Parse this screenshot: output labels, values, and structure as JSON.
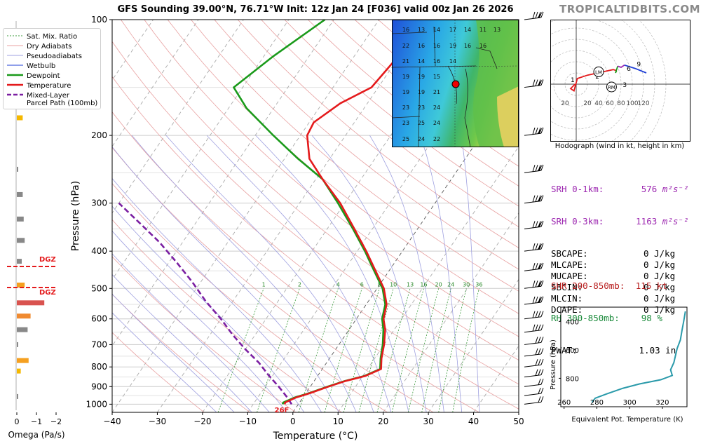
{
  "header": {
    "title": "GFS Sounding 39.00°N, 76.71°W Init: 12z Jan 24 [F036] valid 00z Jan 26 2026",
    "brand": "TROPICALTIDBITS.COM"
  },
  "skewt": {
    "xlabel": "Temperature (°C)",
    "ylabel": "Pressure (hPa)",
    "x_ticks": [
      -40,
      -30,
      -20,
      -10,
      0,
      10,
      20,
      30,
      40,
      50
    ],
    "x_tick_labels": [
      "−40",
      "−30",
      "−20",
      "−10",
      "0",
      "10",
      "20",
      "30",
      "40",
      "50"
    ],
    "y_ticks": [
      100,
      200,
      300,
      400,
      500,
      600,
      700,
      800,
      900,
      1000
    ],
    "y_tick_labels": [
      "100",
      "200",
      "300",
      "400",
      "500",
      "600",
      "700",
      "800",
      "900",
      "1000"
    ],
    "mixing_ratio_labels": [
      "1",
      "2",
      "4",
      "6",
      "8",
      "10",
      "13",
      "16",
      "20",
      "24",
      "30",
      "36"
    ],
    "surface_temp_label": "26F",
    "legend": [
      "Sat. Mix. Ratio",
      "Dry Adiabats",
      "Pseudoadiabats",
      "Wetbulb",
      "Dewpoint",
      "Temperature",
      "Mixed-Layer\nParcel Path (100mb)"
    ]
  },
  "chart_data": [
    {
      "type": "line",
      "title": "GFS Sounding 39.00°N, 76.71°W Init: 12z Jan 24 [F036] valid 00z Jan 26 2026",
      "xlabel": "Temperature (°C)",
      "ylabel": "Pressure (hPa)",
      "xlim": [
        -40,
        50
      ],
      "ylim": [
        1050,
        100
      ],
      "y_scale": "log",
      "grid": true,
      "legend_position": "top-left",
      "series": [
        {
          "name": "Temperature",
          "color": "#e41a1c",
          "points": [
            [
              -3.0,
              1000
            ],
            [
              -3.2,
              990
            ],
            [
              -1.5,
              960
            ],
            [
              1.0,
              935
            ],
            [
              4.0,
              900
            ],
            [
              7.0,
              870
            ],
            [
              10.5,
              845
            ],
            [
              13.0,
              810
            ],
            [
              11.5,
              760
            ],
            [
              10.0,
              700
            ],
            [
              8.0,
              640
            ],
            [
              6.0,
              600
            ],
            [
              4.5,
              550
            ],
            [
              1.5,
              500
            ],
            [
              -3.0,
              450
            ],
            [
              -8.0,
              400
            ],
            [
              -14.0,
              350
            ],
            [
              -21.0,
              300
            ],
            [
              -28.5,
              260
            ],
            [
              -34.5,
              230
            ],
            [
              -38.5,
              200
            ],
            [
              -39.0,
              185
            ],
            [
              -36.0,
              165
            ],
            [
              -31.5,
              150
            ],
            [
              -30.0,
              120
            ],
            [
              -29.0,
              100
            ]
          ]
        },
        {
          "name": "Dewpoint",
          "color": "#1a9a1a",
          "points": [
            [
              -3.5,
              1000
            ],
            [
              -3.6,
              990
            ],
            [
              -1.8,
              960
            ],
            [
              0.8,
              935
            ],
            [
              3.8,
              900
            ],
            [
              6.8,
              870
            ],
            [
              10.3,
              845
            ],
            [
              12.8,
              810
            ],
            [
              11.3,
              760
            ],
            [
              9.7,
              700
            ],
            [
              7.6,
              640
            ],
            [
              5.7,
              600
            ],
            [
              4.2,
              550
            ],
            [
              1.2,
              500
            ],
            [
              -3.3,
              450
            ],
            [
              -8.3,
              400
            ],
            [
              -14.3,
              350
            ],
            [
              -21.5,
              300
            ],
            [
              -28.5,
              260
            ],
            [
              -37.0,
              230
            ],
            [
              -46.0,
              200
            ],
            [
              -56.0,
              170
            ],
            [
              -62.0,
              150
            ],
            [
              -58.0,
              125
            ],
            [
              -52.0,
              100
            ]
          ]
        },
        {
          "name": "Mixed-Layer\nParcel Path (100mb)",
          "color": "#7b1fa2",
          "dash": true,
          "points": [
            [
              -1.5,
              1000
            ],
            [
              -3.5,
              960
            ],
            [
              -7.0,
              900
            ],
            [
              -11.0,
              840
            ],
            [
              -15.0,
              780
            ],
            [
              -20.0,
              720
            ],
            [
              -25.0,
              660
            ],
            [
              -30.0,
              600
            ],
            [
              -36.0,
              540
            ],
            [
              -42.0,
              480
            ],
            [
              -48.0,
              430
            ],
            [
              -55.0,
              380
            ],
            [
              -62.0,
              340
            ],
            [
              -70.0,
              300
            ]
          ]
        }
      ]
    },
    {
      "type": "line",
      "title": "",
      "xlabel": "Equivalent Pot. Temperature (K)",
      "ylabel": "Pressure (hPa)",
      "x_ticks": [
        260,
        280,
        300,
        320
      ],
      "y_ticks": [
        400,
        600,
        800
      ],
      "xlim": [
        258,
        335
      ],
      "ylim": [
        1000,
        300
      ],
      "series": [
        {
          "name": "",
          "color": "#2a9aaa",
          "points": [
            [
              277,
              970
            ],
            [
              279,
              940
            ],
            [
              286,
              910
            ],
            [
              296,
              870
            ],
            [
              306,
              840
            ],
            [
              319,
              810
            ],
            [
              326,
              780
            ],
            [
              325,
              740
            ],
            [
              327,
              690
            ],
            [
              328,
              640
            ],
            [
              329,
              590
            ],
            [
              331,
              530
            ],
            [
              332,
              460
            ],
            [
              333,
              400
            ],
            [
              334,
              330
            ]
          ]
        }
      ]
    },
    {
      "type": "line",
      "title": "Hodograph (wind in kt, height in km)",
      "ring_labels": [
        "20",
        "20",
        "40",
        "60",
        "80",
        "100",
        "120"
      ],
      "height_labels": [
        "1",
        "2",
        "3",
        "6",
        "9"
      ],
      "storm_markers": [
        "LM",
        "RM"
      ],
      "series": [
        {
          "name": "0-3 km",
          "color": "#e41a1c",
          "points": [
            [
              -2,
              0
            ],
            [
              -10,
              -8
            ],
            [
              -4,
              -12
            ],
            [
              2,
              10
            ],
            [
              20,
              16
            ],
            [
              48,
              22
            ],
            [
              66,
              26
            ],
            [
              72,
              24
            ]
          ]
        },
        {
          "name": "3-6 km",
          "color": "#1a9a1a",
          "points": [
            [
              72,
              24
            ],
            [
              70,
              20
            ],
            [
              74,
              32
            ]
          ]
        },
        {
          "name": "6-9 km",
          "color": "#9c27b0",
          "points": [
            [
              74,
              32
            ],
            [
              80,
              30
            ],
            [
              86,
              34
            ]
          ]
        },
        {
          "name": "9+ km",
          "color": "#1f3fd6",
          "points": [
            [
              86,
              34
            ],
            [
              105,
              28
            ],
            [
              125,
              20
            ]
          ]
        }
      ]
    },
    {
      "type": "bar",
      "title": "",
      "xlabel": "Omega (Pa/s)",
      "x_ticks": [
        0,
        -1,
        -2
      ],
      "x_tick_labels": [
        "0",
        "−1",
        "−2"
      ],
      "annotations": [
        "DGZ",
        "DGZ"
      ],
      "levels_hPa": [
        180,
        245,
        285,
        330,
        375,
        425,
        490,
        545,
        590,
        640,
        700,
        770,
        820,
        955
      ],
      "values": [
        -0.3,
        -0.05,
        -0.3,
        -0.35,
        -0.4,
        -0.25,
        -0.4,
        -1.4,
        -0.7,
        -0.55,
        -0.05,
        -0.6,
        -0.2,
        -0.05
      ],
      "colors": [
        "#f5b800",
        "#888888",
        "#888888",
        "#888888",
        "#888888",
        "#888888",
        "#f5a020",
        "#d9534f",
        "#f08a30",
        "#888888",
        "#888888",
        "#f5a020",
        "#f5b800",
        "#888888"
      ]
    }
  ],
  "inset_map": {
    "values": [
      "16",
      "13",
      "14",
      "17",
      "14",
      "11",
      "13",
      "22",
      "16",
      "16",
      "19",
      "16",
      "16",
      "21",
      "14",
      "16",
      "14",
      "19",
      "19",
      "15",
      "21",
      "19",
      "19",
      "23",
      "23",
      "24",
      "23",
      "25",
      "24",
      "25",
      "24",
      "22"
    ]
  },
  "wind_barbs": {
    "pressures": [
      100,
      150,
      200,
      250,
      300,
      350,
      400,
      450,
      500,
      550,
      600,
      650,
      700,
      750,
      800,
      850,
      900,
      950,
      1000
    ]
  },
  "stats": {
    "srh01_label": "SRH 0-1km:",
    "srh01_value": "576",
    "srh_unit_a": "m²s⁻²",
    "srh03_label": "SRH 0-3km:",
    "srh03_value": "1163",
    "srh_unit_b": "m²s⁻²",
    "rows": [
      {
        "label": "SBCAPE:",
        "value": "0",
        "unit": "J/kg"
      },
      {
        "label": "MLCAPE:",
        "value": "0",
        "unit": "J/kg"
      },
      {
        "label": "MUCAPE:",
        "value": "0",
        "unit": "J/kg"
      },
      {
        "label": "SBCIN:",
        "value": "0",
        "unit": "J/kg"
      },
      {
        "label": "MLCIN:",
        "value": "0",
        "unit": "J/kg"
      },
      {
        "label": "DCAPE:",
        "value": "0",
        "unit": "J/kg"
      }
    ],
    "shr_label": "SHR 200-850mb:",
    "shr_value": "115",
    "shr_unit": "kt",
    "rh_label": "RH 300-850mb:",
    "rh_value": "98",
    "rh_unit": "%",
    "pwat_label": "PWAT:",
    "pwat_value": "1.03",
    "pwat_unit": "in",
    "colors": {
      "srh": "#9c27b0",
      "shr": "#b71c1c",
      "rh": "#1a8a3a"
    }
  }
}
